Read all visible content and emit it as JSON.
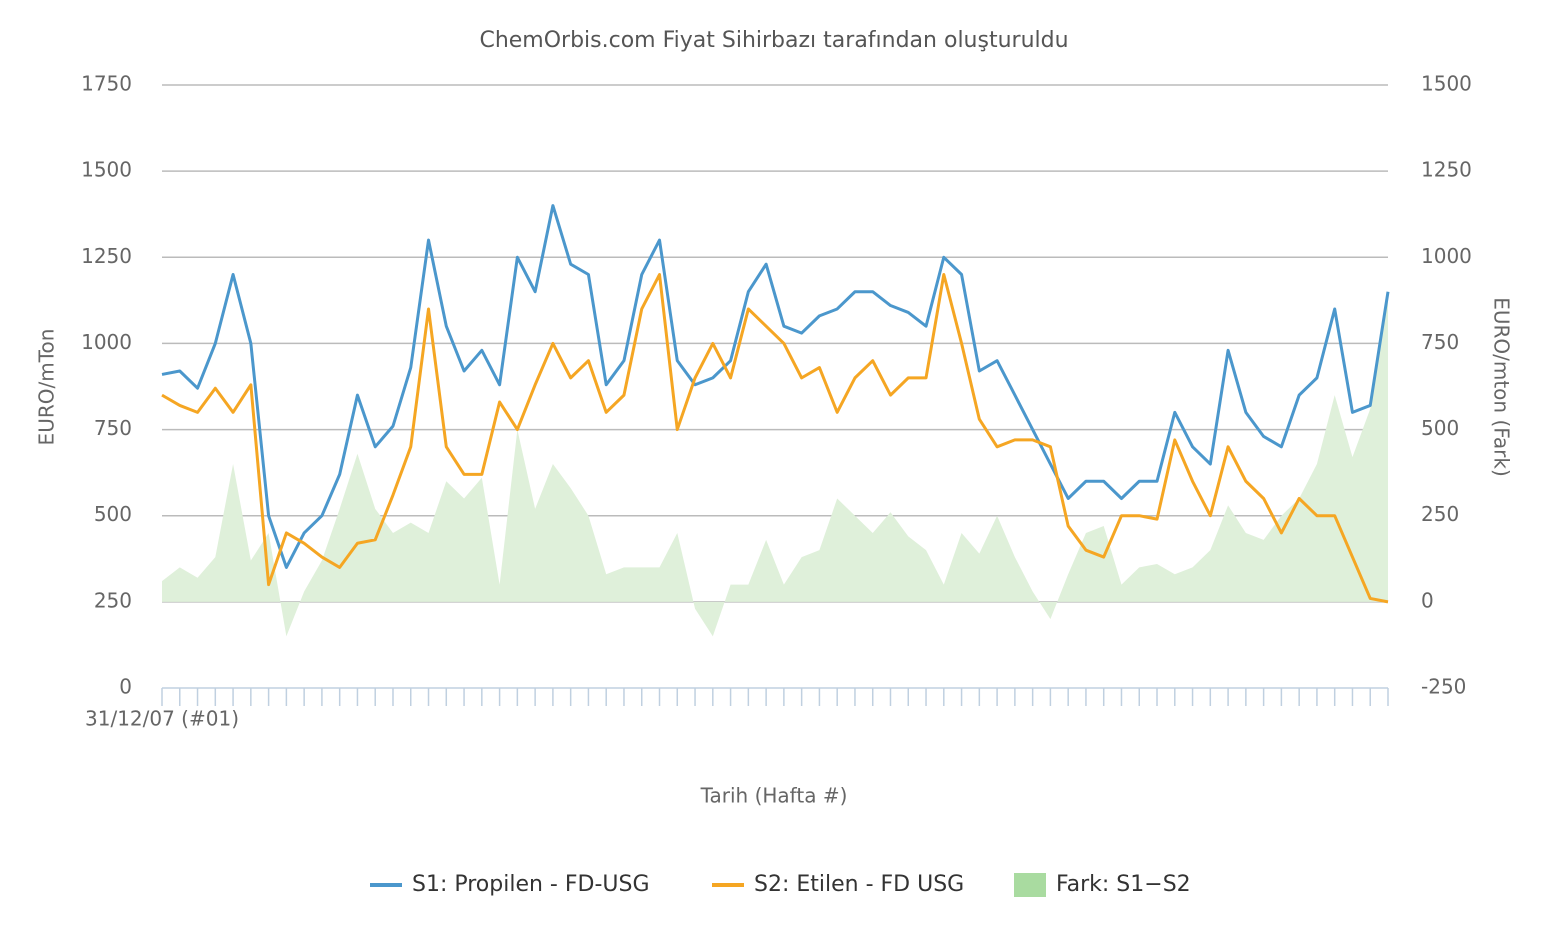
{
  "chart_data": {
    "type": "line",
    "title": "ChemOrbis.com Fiyat Sihirbazı tarafından oluşturuldu",
    "xlabel": "Tarih (Hafta #)",
    "ylabel": "EURO/mTon",
    "y2label": "EURO/mton (Fark)",
    "categories": [
      "31/12/07 (#01)",
      null,
      null,
      null,
      null,
      null,
      null,
      null,
      null,
      null,
      null,
      null,
      null,
      null,
      null,
      null,
      null,
      null,
      null,
      null,
      null,
      null,
      null,
      null,
      null,
      null,
      null,
      null,
      null,
      null,
      null,
      null,
      null,
      null,
      null,
      null,
      null,
      null,
      null,
      null,
      null,
      null,
      null,
      null,
      null,
      null,
      null,
      null,
      null,
      null,
      null,
      null,
      null,
      null,
      null,
      null,
      null,
      null,
      null,
      null,
      null,
      null,
      null,
      null,
      null,
      null,
      null,
      null,
      null,
      null
    ],
    "series": [
      {
        "name": "S1: Propilen - FD-USG",
        "color": "#4b97cc",
        "type": "line",
        "values": [
          910,
          920,
          870,
          1000,
          1200,
          1000,
          500,
          350,
          450,
          500,
          620,
          850,
          700,
          760,
          930,
          1300,
          1050,
          920,
          980,
          880,
          1250,
          1150,
          1400,
          1230,
          1200,
          880,
          950,
          1200,
          1300,
          950,
          880,
          900,
          950,
          1150,
          1230,
          1050,
          1030,
          1080,
          1100,
          1150,
          1150,
          1110,
          1090,
          1050,
          1250,
          1200,
          920,
          950,
          850,
          750,
          650,
          550,
          600,
          600,
          550,
          600,
          600,
          800,
          700,
          650,
          980,
          800,
          730,
          700,
          850,
          900,
          1100,
          800,
          820,
          1150
        ]
      },
      {
        "name": "S2: Etilen - FD USG",
        "color": "#f5a623",
        "type": "line",
        "values": [
          850,
          820,
          800,
          870,
          800,
          880,
          300,
          450,
          420,
          380,
          350,
          420,
          430,
          560,
          700,
          1100,
          700,
          620,
          620,
          830,
          750,
          880,
          1000,
          900,
          950,
          800,
          850,
          1100,
          1200,
          750,
          900,
          1000,
          900,
          1100,
          1050,
          1000,
          900,
          930,
          800,
          900,
          950,
          850,
          900,
          900,
          1200,
          1000,
          780,
          700,
          720,
          720,
          700,
          470,
          400,
          380,
          500,
          500,
          490,
          720,
          600,
          500,
          700,
          600,
          550,
          450,
          550,
          500,
          500,
          380,
          260,
          250
        ]
      },
      {
        "name": "Fark: S1−S2",
        "color": "#dff0da",
        "legend_color": "#a9dba0",
        "type": "area",
        "axis": "y2",
        "values": [
          60,
          100,
          70,
          130,
          400,
          120,
          200,
          -100,
          30,
          120,
          270,
          430,
          270,
          200,
          230,
          200,
          350,
          300,
          360,
          50,
          500,
          270,
          400,
          330,
          250,
          80,
          100,
          100,
          100,
          200,
          -20,
          -100,
          50,
          50,
          180,
          50,
          130,
          150,
          300,
          250,
          200,
          260,
          190,
          150,
          50,
          200,
          140,
          250,
          130,
          30,
          -50,
          80,
          200,
          220,
          50,
          100,
          110,
          80,
          100,
          150,
          280,
          200,
          180,
          250,
          300,
          400,
          600,
          420,
          560,
          900
        ]
      }
    ],
    "ylim": [
      0,
      1750
    ],
    "yticks": [
      0,
      250,
      500,
      750,
      1000,
      1250,
      1500,
      1750
    ],
    "y2lim": [
      -250,
      1500
    ],
    "y2ticks": [
      -250,
      0,
      250,
      500,
      750,
      1000,
      1250,
      1500
    ],
    "grid": true,
    "legend": "bottom"
  }
}
